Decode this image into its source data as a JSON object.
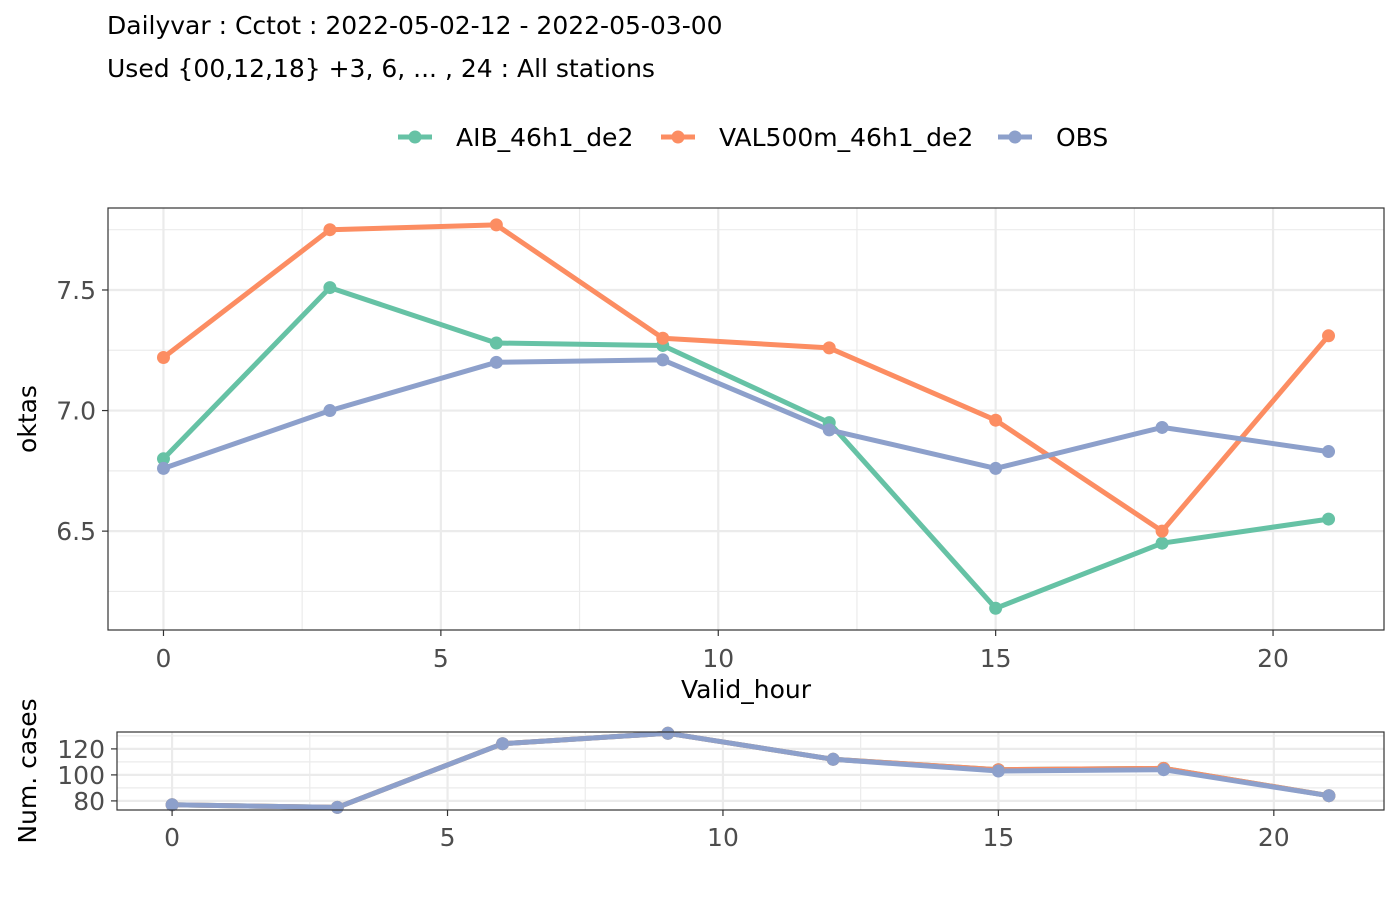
{
  "title": "Dailyvar : Cctot : 2022-05-02-12 - 2022-05-03-00",
  "subtitle": "Used {00,12,18} +3, 6, ... , 24 : All stations",
  "colors": {
    "AIB_46h1_de2": "#66c2a5",
    "VAL500m_46h1_de2": "#fc8d62",
    "OBS": "#8da0cb",
    "grid": "#ebebeb",
    "panel_border": "#333333"
  },
  "chart_data": [
    {
      "type": "line",
      "xlabel": "Valid_hour",
      "ylabel": "oktas",
      "xlim": [
        -1,
        22
      ],
      "ylim": [
        6.09,
        7.84
      ],
      "xticks": [
        0,
        5,
        10,
        15,
        20
      ],
      "xtick_labels": [
        "0",
        "5",
        "10",
        "15",
        "20"
      ],
      "yticks": [
        6.5,
        7.0,
        7.5
      ],
      "ytick_labels": [
        "6.5",
        "7.0",
        "7.5"
      ],
      "grid": true,
      "legend": "top",
      "x": [
        0,
        3,
        6,
        9,
        12,
        15,
        18,
        21
      ],
      "series": [
        {
          "name": "AIB_46h1_de2",
          "color": "#66c2a5",
          "values": [
            6.8,
            7.51,
            7.28,
            7.27,
            6.95,
            6.18,
            6.45,
            6.55
          ]
        },
        {
          "name": "VAL500m_46h1_de2",
          "color": "#fc8d62",
          "values": [
            7.22,
            7.75,
            7.77,
            7.3,
            7.26,
            6.96,
            6.5,
            7.31
          ]
        },
        {
          "name": "OBS",
          "color": "#8da0cb",
          "values": [
            6.76,
            7.0,
            7.2,
            7.21,
            6.92,
            6.76,
            6.93,
            6.83
          ]
        }
      ]
    },
    {
      "type": "line",
      "xlabel": "",
      "ylabel": "Num. cases",
      "xlim": [
        -1,
        22
      ],
      "ylim": [
        73,
        133
      ],
      "xticks": [
        0,
        5,
        10,
        15,
        20
      ],
      "xtick_labels": [
        "0",
        "5",
        "10",
        "15",
        "20"
      ],
      "yticks": [
        80,
        100,
        120
      ],
      "ytick_labels": [
        "80",
        "100",
        "120"
      ],
      "grid": true,
      "x": [
        0,
        3,
        6,
        9,
        12,
        15,
        18,
        21
      ],
      "series": [
        {
          "name": "AIB_46h1_de2",
          "color": "#66c2a5",
          "values": [
            77,
            75,
            124,
            132,
            112,
            104,
            105,
            84
          ]
        },
        {
          "name": "VAL500m_46h1_de2",
          "color": "#fc8d62",
          "values": [
            77,
            75,
            124,
            132,
            112,
            104,
            105,
            84
          ]
        },
        {
          "name": "OBS",
          "color": "#8da0cb",
          "values": [
            77,
            75,
            124,
            132,
            112,
            103,
            104,
            84
          ]
        }
      ]
    }
  ]
}
